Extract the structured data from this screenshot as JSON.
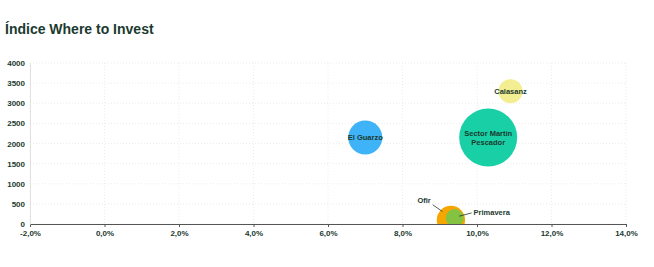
{
  "chart_data": {
    "type": "bubble",
    "title": "Índice Where to Invest",
    "xlim": [
      -2,
      14
    ],
    "xticks": [
      {
        "value": -2,
        "label": "-2,0%"
      },
      {
        "value": 0,
        "label": "0,0%"
      },
      {
        "value": 2,
        "label": "2,0%"
      },
      {
        "value": 4,
        "label": "4,0%"
      },
      {
        "value": 6,
        "label": "6,0%"
      },
      {
        "value": 8,
        "label": "8,0%"
      },
      {
        "value": 10,
        "label": "10,0%"
      },
      {
        "value": 12,
        "label": "12,0%"
      },
      {
        "value": 14,
        "label": "14,0%"
      }
    ],
    "ylim": [
      0,
      4000
    ],
    "yticks": [
      0,
      500,
      1000,
      1500,
      2000,
      2500,
      3000,
      3500,
      4000
    ],
    "grid": true,
    "series": [
      {
        "name": "El Guarzo",
        "color": "#3fb3f7",
        "x": [
          7.0
        ],
        "values": [
          2150
        ],
        "size": [
          290
        ]
      },
      {
        "name": "Sector Martín Pescador",
        "color": "#19d0a6",
        "x": [
          10.3
        ],
        "values": [
          2150
        ],
        "size": [
          840
        ]
      },
      {
        "name": "Calasanz",
        "color": "#f4ee93",
        "x": [
          10.9
        ],
        "values": [
          3300
        ],
        "size": [
          145
        ]
      },
      {
        "name": "Ofir",
        "color": "#f7a600",
        "x": [
          9.3
        ],
        "values": [
          100
        ],
        "size": [
          200
        ]
      },
      {
        "name": "Primavera",
        "color": "#84c341",
        "x": [
          9.4
        ],
        "values": [
          150
        ],
        "size": [
          80
        ]
      }
    ]
  }
}
